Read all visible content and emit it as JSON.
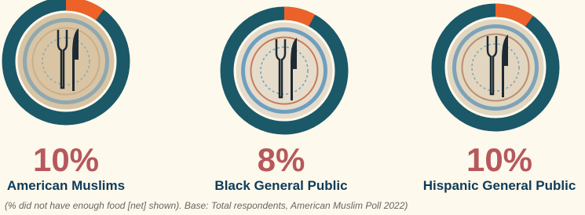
{
  "chart_data": [
    {
      "type": "donut",
      "title": "American Muslims",
      "values": [
        10
      ],
      "value_labels": [
        "10%"
      ],
      "color": "#ec6228",
      "track_color": "#1b5868"
    },
    {
      "type": "donut",
      "title": "Black General Public",
      "values": [
        8
      ],
      "value_labels": [
        "8%"
      ],
      "color": "#ec6228",
      "track_color": "#1b5868"
    },
    {
      "type": "donut",
      "title": "Hispanic General Public",
      "values": [
        10
      ],
      "value_labels": [
        "10%"
      ],
      "color": "#ec6228",
      "track_color": "#1b5868"
    }
  ],
  "footnote": "(% did not have enough food [net] shown). Base: Total respondents, American Muslim Poll 2022)"
}
